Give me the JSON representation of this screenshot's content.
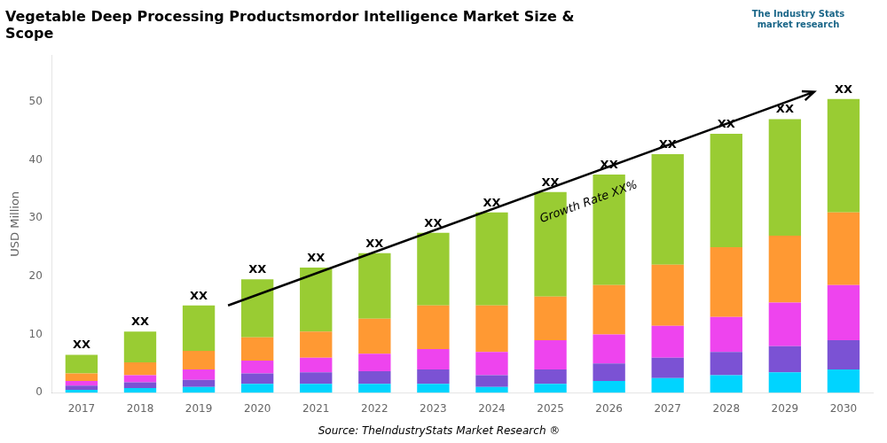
{
  "chart_data": {
    "type": "bar",
    "stacked": true,
    "title": "Vegetable Deep Processing Productsmordor Intelligence Market Size &\nScope",
    "ylabel": "USD Million",
    "categories": [
      "2017",
      "2018",
      "2019",
      "2020",
      "2021",
      "2022",
      "2023",
      "2024",
      "2025",
      "2026",
      "2027",
      "2028",
      "2029",
      "2030"
    ],
    "series": [
      {
        "color": "#00D4FF",
        "values": [
          0.5,
          0.8,
          1.0,
          1.5,
          1.5,
          1.5,
          1.5,
          1.0,
          1.5,
          2.0,
          2.5,
          3.0,
          3.5,
          4.0
        ]
      },
      {
        "color": "#7B52D4",
        "values": [
          0.7,
          1.0,
          1.2,
          1.8,
          2.0,
          2.2,
          2.5,
          2.0,
          2.5,
          3.0,
          3.5,
          4.0,
          4.5,
          5.0
        ]
      },
      {
        "color": "#EE44EE",
        "values": [
          0.8,
          1.2,
          1.8,
          2.2,
          2.5,
          3.0,
          3.5,
          4.0,
          5.0,
          5.0,
          5.5,
          6.0,
          7.5,
          9.5
        ]
      },
      {
        "color": "#FF9933",
        "values": [
          1.3,
          2.2,
          3.2,
          4.0,
          4.5,
          6.0,
          7.5,
          8.0,
          7.5,
          8.5,
          10.5,
          12.0,
          11.5,
          12.5
        ]
      },
      {
        "color": "#99CC33",
        "values": [
          3.2,
          5.3,
          7.8,
          10.0,
          11.0,
          11.3,
          12.5,
          16.0,
          18.0,
          19.0,
          19.0,
          19.5,
          20.0,
          19.5
        ]
      }
    ],
    "ylim": [
      0,
      58
    ],
    "yticks": [
      0,
      10,
      20,
      30,
      40,
      50
    ],
    "grid": false,
    "annotations": [
      {
        "kind": "bar_top",
        "text": "XX"
      },
      {
        "kind": "arrow",
        "text": "Growth Rate XX%"
      },
      {
        "kind": "source",
        "text": "Source: TheIndustryStats Market Research ®"
      },
      {
        "kind": "logo",
        "text": "The Industry Stats\nmarket research"
      }
    ]
  }
}
